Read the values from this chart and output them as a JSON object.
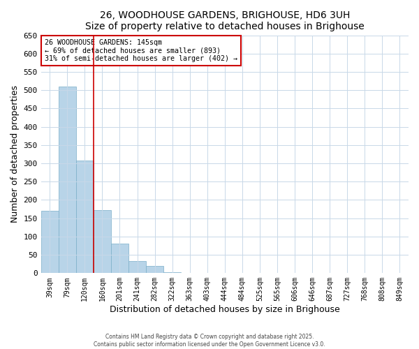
{
  "title": "26, WOODHOUSE GARDENS, BRIGHOUSE, HD6 3UH",
  "subtitle": "Size of property relative to detached houses in Brighouse",
  "xlabel": "Distribution of detached houses by size in Brighouse",
  "ylabel": "Number of detached properties",
  "bar_labels": [
    "39sqm",
    "79sqm",
    "120sqm",
    "160sqm",
    "201sqm",
    "241sqm",
    "282sqm",
    "322sqm",
    "363sqm",
    "403sqm",
    "444sqm",
    "484sqm",
    "525sqm",
    "565sqm",
    "606sqm",
    "646sqm",
    "687sqm",
    "727sqm",
    "768sqm",
    "808sqm",
    "849sqm"
  ],
  "bar_values": [
    170,
    510,
    308,
    173,
    80,
    33,
    20,
    3,
    0,
    0,
    0,
    0,
    0,
    0,
    0,
    0,
    0,
    0,
    0,
    0,
    1
  ],
  "bar_color": "#b8d4e8",
  "bar_edge_color": "#7aaec8",
  "vline_x": 3.0,
  "vline_color": "#cc0000",
  "annotation_title": "26 WOODHOUSE GARDENS: 145sqm",
  "annotation_line1": "← 69% of detached houses are smaller (893)",
  "annotation_line2": "31% of semi-detached houses are larger (402) →",
  "annotation_box_color": "#cc0000",
  "ylim": [
    0,
    650
  ],
  "yticks": [
    0,
    50,
    100,
    150,
    200,
    250,
    300,
    350,
    400,
    450,
    500,
    550,
    600,
    650
  ],
  "footer1": "Contains HM Land Registry data © Crown copyright and database right 2025.",
  "footer2": "Contains public sector information licensed under the Open Government Licence v3.0.",
  "bg_color": "#ffffff",
  "grid_color": "#c8d8e8"
}
